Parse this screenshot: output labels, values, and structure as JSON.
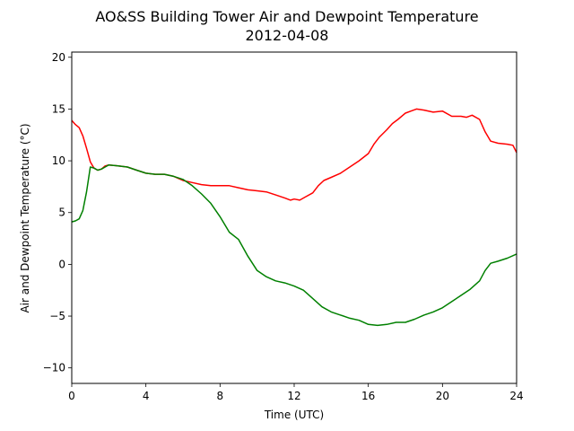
{
  "chart_data": {
    "type": "line",
    "title": "AO&SS Building Tower Air and Dewpoint Temperature",
    "subtitle": "2012-04-08",
    "xlabel": "Time (UTC)",
    "ylabel": "Air and Dewpoint Temperature (°C)",
    "xlim": [
      0,
      24
    ],
    "ylim": [
      -11.5,
      20.5
    ],
    "xticks": [
      0,
      4,
      8,
      12,
      16,
      20,
      24
    ],
    "xtick_labels": [
      "0",
      "4",
      "8",
      "12",
      "16",
      "20",
      "24"
    ],
    "yticks": [
      -10,
      -5,
      0,
      5,
      10,
      15,
      20
    ],
    "ytick_labels": [
      "−10",
      "−5",
      "0",
      "5",
      "10",
      "15",
      "20"
    ],
    "grid": false,
    "legend": "none",
    "series": [
      {
        "color": "#ff0000",
        "x": [
          0,
          0.2,
          0.4,
          0.6,
          0.8,
          1.0,
          1.2,
          1.4,
          1.6,
          1.8,
          2.0,
          2.5,
          3.0,
          3.5,
          4.0,
          4.5,
          5.0,
          5.5,
          6.0,
          6.5,
          7.0,
          7.5,
          8.0,
          8.5,
          9.0,
          9.5,
          10.0,
          10.5,
          11.0,
          11.5,
          11.8,
          12.0,
          12.3,
          12.6,
          13.0,
          13.3,
          13.6,
          14.0,
          14.5,
          15.0,
          15.5,
          16.0,
          16.3,
          16.6,
          17.0,
          17.3,
          17.6,
          18.0,
          18.3,
          18.6,
          19.0,
          19.5,
          20.0,
          20.5,
          21.0,
          21.3,
          21.6,
          22.0,
          22.3,
          22.6,
          23.0,
          23.5,
          23.8,
          24.0
        ],
        "y": [
          13.9,
          13.5,
          13.2,
          12.4,
          11.2,
          9.9,
          9.3,
          9.1,
          9.2,
          9.5,
          9.6,
          9.5,
          9.4,
          9.1,
          8.8,
          8.7,
          8.7,
          8.5,
          8.1,
          7.9,
          7.7,
          7.6,
          7.6,
          7.6,
          7.4,
          7.2,
          7.1,
          7.0,
          6.7,
          6.4,
          6.2,
          6.3,
          6.2,
          6.5,
          6.9,
          7.6,
          8.1,
          8.4,
          8.8,
          9.4,
          10.0,
          10.7,
          11.6,
          12.3,
          13.0,
          13.6,
          14.0,
          14.6,
          14.8,
          15.0,
          14.9,
          14.7,
          14.8,
          14.3,
          14.3,
          14.2,
          14.4,
          14.0,
          12.8,
          11.9,
          11.7,
          11.6,
          11.5,
          10.8
        ]
      },
      {
        "color": "#008000",
        "x": [
          0,
          0.2,
          0.4,
          0.6,
          0.8,
          1.0,
          1.2,
          1.4,
          1.6,
          1.8,
          2.0,
          2.5,
          3.0,
          3.5,
          4.0,
          4.5,
          5.0,
          5.5,
          6.0,
          6.5,
          7.0,
          7.5,
          8.0,
          8.5,
          9.0,
          9.5,
          10.0,
          10.5,
          11.0,
          11.5,
          12.0,
          12.5,
          13.0,
          13.5,
          14.0,
          14.5,
          15.0,
          15.5,
          16.0,
          16.5,
          17.0,
          17.5,
          18.0,
          18.5,
          19.0,
          19.5,
          20.0,
          20.5,
          21.0,
          21.5,
          22.0,
          22.3,
          22.6,
          23.0,
          23.5,
          24.0
        ],
        "y": [
          4.1,
          4.2,
          4.4,
          5.2,
          7.0,
          9.4,
          9.3,
          9.1,
          9.2,
          9.4,
          9.6,
          9.5,
          9.4,
          9.1,
          8.8,
          8.7,
          8.7,
          8.5,
          8.2,
          7.6,
          6.8,
          5.9,
          4.6,
          3.1,
          2.4,
          0.8,
          -0.6,
          -1.2,
          -1.6,
          -1.8,
          -2.1,
          -2.5,
          -3.3,
          -4.1,
          -4.6,
          -4.9,
          -5.2,
          -5.4,
          -5.8,
          -5.9,
          -5.8,
          -5.6,
          -5.6,
          -5.3,
          -4.9,
          -4.6,
          -4.2,
          -3.6,
          -3.0,
          -2.4,
          -1.6,
          -0.6,
          0.1,
          0.3,
          0.6,
          1.0
        ]
      }
    ]
  }
}
